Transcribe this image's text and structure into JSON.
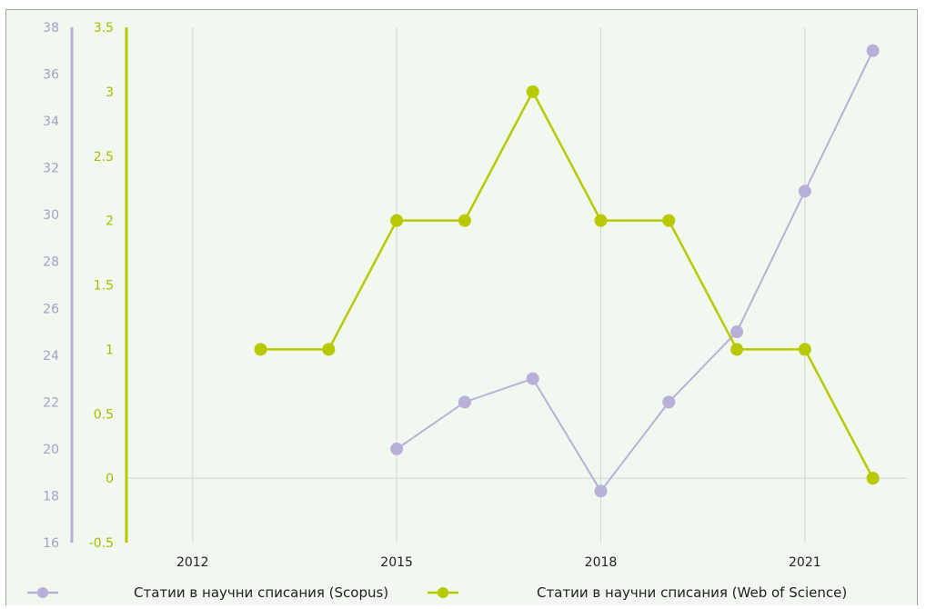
{
  "colors": {
    "background": "#f1f8ef",
    "grid": "#cfd8cf",
    "scopus": "#b8b0d8",
    "wos": "#b8c900",
    "tick_left": "#a79ec8",
    "tick_right": "#a9bb00",
    "tick_x": "#222222"
  },
  "chart_data": {
    "type": "line",
    "xlim": [
      2011,
      2022.5
    ],
    "x_ticks": [
      2012,
      2015,
      2018,
      2021
    ],
    "x_tick_labels": [
      "2012",
      "2015",
      "2018",
      "2021"
    ],
    "y_left": {
      "lim": [
        16,
        38
      ],
      "ticks": [
        16,
        18,
        20,
        22,
        24,
        26,
        28,
        30,
        32,
        34,
        36,
        38
      ],
      "tick_labels": [
        "16",
        "18",
        "20",
        "22",
        "24",
        "26",
        "28",
        "30",
        "32",
        "34",
        "36",
        "38"
      ]
    },
    "y_right": {
      "lim": [
        -0.5,
        3.5
      ],
      "ticks": [
        -0.5,
        0,
        0.5,
        1,
        1.5,
        2,
        2.5,
        3,
        3.5
      ],
      "tick_labels": [
        "-0.5",
        "0",
        "0.5",
        "1",
        "1.5",
        "2",
        "2.5",
        "3",
        "3.5"
      ]
    },
    "grid": "vertical-and-zero-line",
    "legend_position": "bottom",
    "series": [
      {
        "name": "Статии в научни списания (Scopus)",
        "axis": "left",
        "x": [
          2015,
          2016,
          2017,
          2018,
          2019,
          2020,
          2021,
          2022
        ],
        "y": [
          20,
          22,
          23,
          18.2,
          22,
          25,
          31,
          37
        ]
      },
      {
        "name": "Статии в научни списания (Web of Science)",
        "axis": "right",
        "x": [
          2013,
          2014,
          2015,
          2016,
          2017,
          2018,
          2019,
          2020,
          2021,
          2022
        ],
        "y": [
          1,
          1,
          2,
          2,
          3,
          2,
          2,
          1,
          1,
          0
        ]
      }
    ]
  }
}
